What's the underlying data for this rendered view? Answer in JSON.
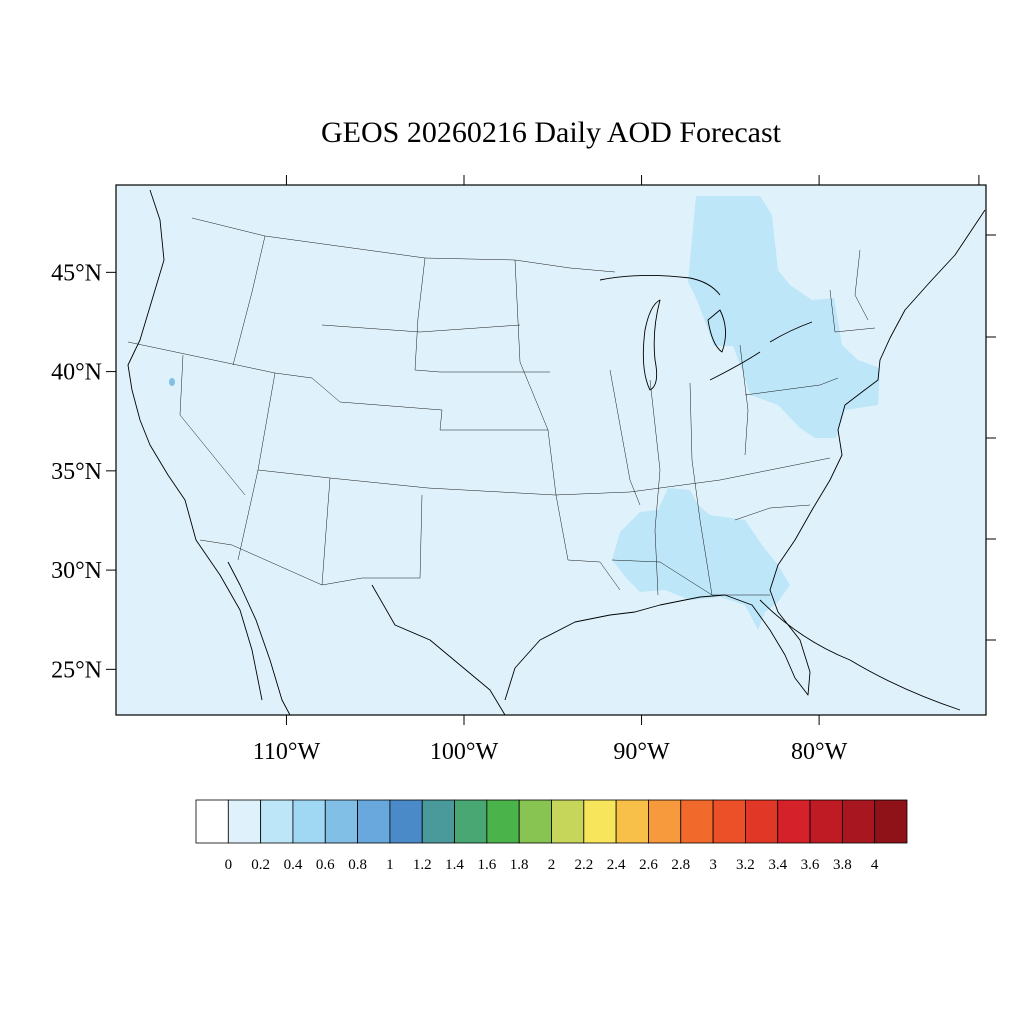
{
  "title": "GEOS 20260216 Daily AOD Forecast",
  "lat_labels": [
    {
      "value": 45,
      "text": "45°N"
    },
    {
      "value": 40,
      "text": "40°N"
    },
    {
      "value": 35,
      "text": "35°N"
    },
    {
      "value": 30,
      "text": "30°N"
    },
    {
      "value": 25,
      "text": "25°N"
    }
  ],
  "lon_labels": [
    {
      "value": -110,
      "text": "110°W"
    },
    {
      "value": -100,
      "text": "100°W"
    },
    {
      "value": -90,
      "text": "90°W"
    },
    {
      "value": -80,
      "text": "80°W"
    }
  ],
  "extent": {
    "lon_min": -119.6,
    "lon_max": -70.6,
    "lat_min": 22.7,
    "lat_max": 49.4
  },
  "colorbar": {
    "labels": [
      "0",
      "0.2",
      "0.4",
      "0.6",
      "0.8",
      "1",
      "1.2",
      "1.4",
      "1.6",
      "1.8",
      "2",
      "2.2",
      "2.4",
      "2.6",
      "2.8",
      "3",
      "3.2",
      "3.4",
      "3.6",
      "3.8",
      "4"
    ],
    "colors": [
      "#ffffff",
      "#dff2fb",
      "#bde6f8",
      "#a0d8f3",
      "#82bfe7",
      "#68a8dd",
      "#4a8ac8",
      "#4a9a9c",
      "#48a773",
      "#4ab44a",
      "#87c451",
      "#c5d65a",
      "#f7e65b",
      "#f8c049",
      "#f69a3d",
      "#f26a2b",
      "#eb5028",
      "#e03726",
      "#d52129",
      "#bf1b25",
      "#a81720",
      "#8e1218"
    ]
  },
  "field": {
    "background_level": "0.0–0.2",
    "elevated_regions_level": "0.2–0.4"
  }
}
